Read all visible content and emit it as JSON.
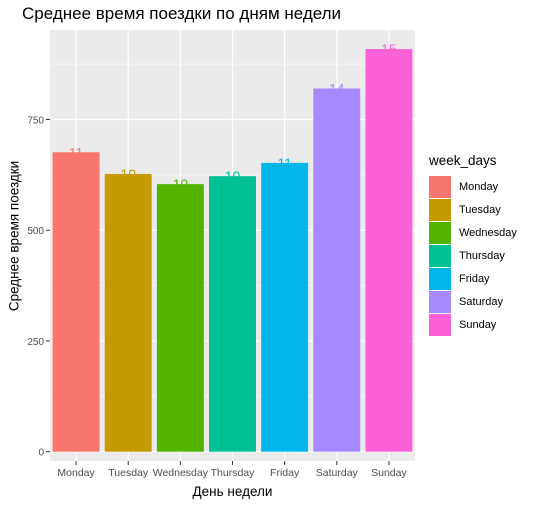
{
  "chart_data": {
    "type": "bar",
    "title": "Среднее время поездки по дням недели",
    "xlabel": "День недели",
    "ylabel": "Среднее время поездки",
    "categories": [
      "Monday",
      "Tuesday",
      "Wednesday",
      "Thursday",
      "Friday",
      "Saturday",
      "Sunday"
    ],
    "values": [
      676,
      627,
      604,
      622,
      652,
      820,
      909
    ],
    "data_labels": [
      "11",
      "10",
      "10",
      "10",
      "11",
      "14",
      "15"
    ],
    "colors": [
      "#F8766D",
      "#C49A00",
      "#53B400",
      "#00C094",
      "#00B6EB",
      "#A58AFF",
      "#FB61D7"
    ],
    "ylim": [
      -21,
      952
    ],
    "yticks": [
      0,
      250,
      500,
      750
    ],
    "ytick_labels": [
      "0",
      "250",
      "500",
      "750"
    ],
    "grid": true,
    "panel_background": "#EBEBEB",
    "legend": {
      "title": "week_days",
      "position": "right",
      "entries": [
        "Monday",
        "Tuesday",
        "Wednesday",
        "Thursday",
        "Friday",
        "Saturday",
        "Sunday"
      ]
    }
  }
}
